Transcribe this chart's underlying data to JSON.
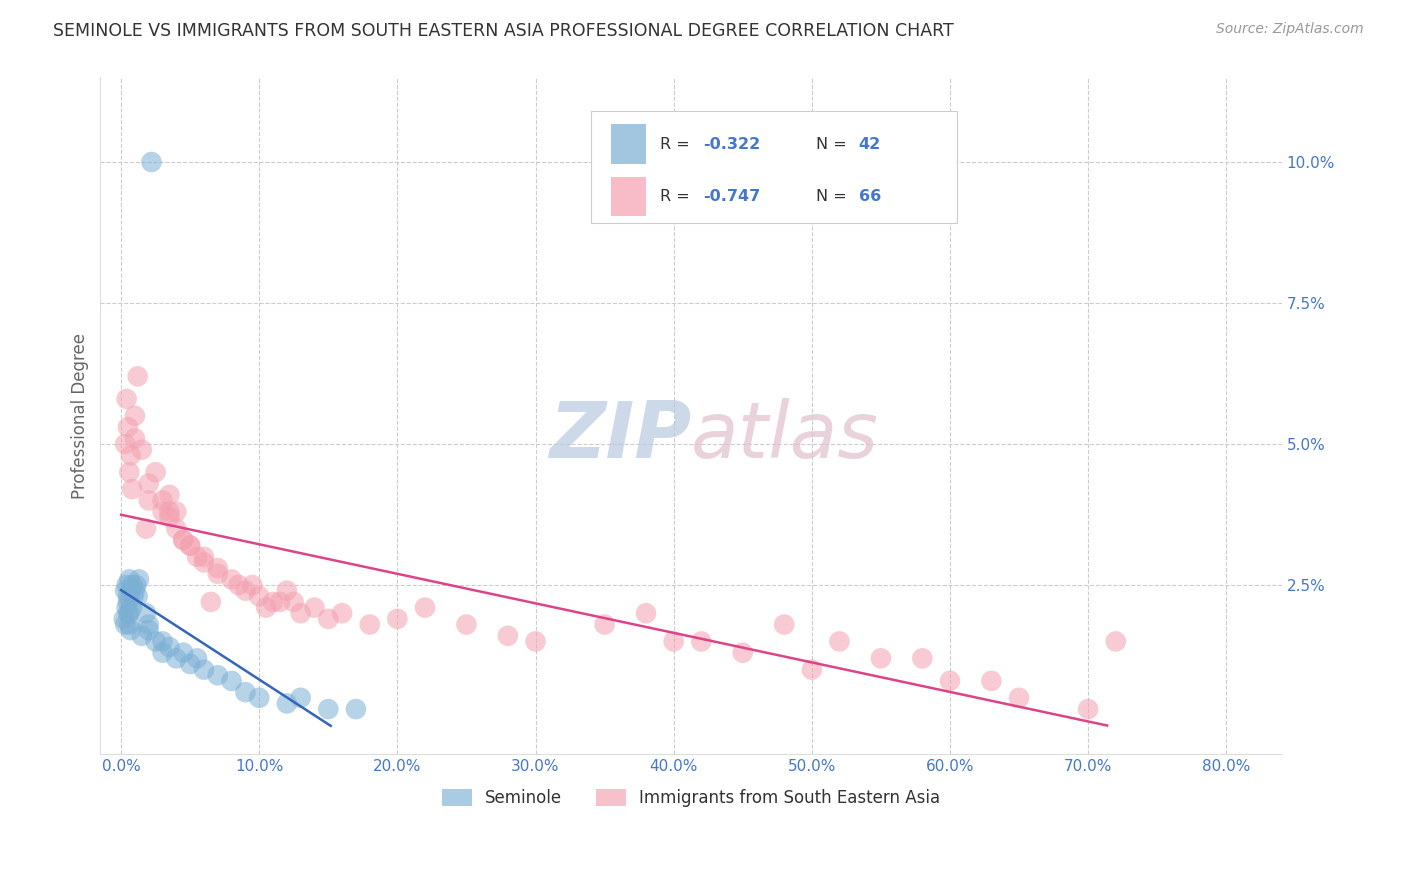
{
  "title": "SEMINOLE VS IMMIGRANTS FROM SOUTH EASTERN ASIA PROFESSIONAL DEGREE CORRELATION CHART",
  "source": "Source: ZipAtlas.com",
  "ylabel": "Professional Degree",
  "xlabel_ticks": [
    0.0,
    10.0,
    20.0,
    30.0,
    40.0,
    50.0,
    60.0,
    70.0,
    80.0
  ],
  "ylabel_ticks": [
    2.5,
    5.0,
    7.5,
    10.0
  ],
  "xlim": [
    -1.5,
    84.0
  ],
  "ylim": [
    -0.5,
    11.5
  ],
  "blue_R": -0.322,
  "blue_N": 42,
  "pink_R": -0.747,
  "pink_N": 66,
  "blue_color": "#7BAFD4",
  "pink_color": "#F4A0B0",
  "blue_line_color": "#3366BB",
  "pink_line_color": "#DD4488",
  "watermark_ZIP_color": "#B8C8E0",
  "watermark_atlas_color": "#E0C0CC",
  "grid_color": "#CCCCCC",
  "title_color": "#333333",
  "axis_value_color": "#4477CC",
  "label_color": "#333333",
  "blue_scatter_x": [
    0.3,
    0.4,
    0.5,
    0.6,
    0.7,
    0.8,
    0.9,
    1.0,
    1.1,
    1.2,
    1.3,
    0.2,
    0.4,
    0.5,
    0.6,
    0.3,
    0.7,
    0.5,
    0.8,
    0.6,
    1.5,
    2.0,
    1.8,
    2.5,
    3.0,
    2.0,
    3.5,
    4.0,
    3.0,
    4.5,
    5.0,
    6.0,
    5.5,
    7.0,
    8.0,
    9.0,
    10.0,
    12.0,
    15.0,
    17.0,
    13.0,
    2.2
  ],
  "blue_scatter_y": [
    2.4,
    2.5,
    2.3,
    2.6,
    2.4,
    2.5,
    2.3,
    2.4,
    2.5,
    2.3,
    2.6,
    1.9,
    2.1,
    2.0,
    1.8,
    1.8,
    1.7,
    2.2,
    2.1,
    2.0,
    1.6,
    1.8,
    2.0,
    1.5,
    1.3,
    1.7,
    1.4,
    1.2,
    1.5,
    1.3,
    1.1,
    1.0,
    1.2,
    0.9,
    0.8,
    0.6,
    0.5,
    0.4,
    0.3,
    0.3,
    0.5,
    10.0
  ],
  "pink_scatter_x": [
    0.3,
    0.5,
    0.7,
    1.0,
    1.2,
    0.4,
    0.6,
    0.8,
    1.5,
    2.0,
    1.0,
    2.5,
    3.0,
    2.0,
    3.5,
    1.8,
    4.0,
    3.0,
    4.5,
    3.5,
    5.0,
    4.0,
    5.5,
    4.5,
    6.0,
    5.0,
    7.0,
    6.0,
    8.0,
    7.0,
    9.0,
    8.5,
    10.0,
    9.5,
    11.0,
    10.5,
    12.0,
    11.5,
    13.0,
    12.5,
    14.0,
    15.0,
    16.0,
    18.0,
    20.0,
    22.0,
    25.0,
    28.0,
    30.0,
    35.0,
    40.0,
    45.0,
    50.0,
    55.0,
    60.0,
    65.0,
    70.0,
    38.0,
    42.0,
    48.0,
    52.0,
    58.0,
    63.0,
    72.0,
    3.5,
    6.5
  ],
  "pink_scatter_y": [
    5.0,
    5.3,
    4.8,
    5.5,
    6.2,
    5.8,
    4.5,
    4.2,
    4.9,
    4.0,
    5.1,
    4.5,
    3.8,
    4.3,
    4.1,
    3.5,
    3.8,
    4.0,
    3.3,
    3.7,
    3.2,
    3.5,
    3.0,
    3.3,
    3.0,
    3.2,
    2.8,
    2.9,
    2.6,
    2.7,
    2.4,
    2.5,
    2.3,
    2.5,
    2.2,
    2.1,
    2.4,
    2.2,
    2.0,
    2.2,
    2.1,
    1.9,
    2.0,
    1.8,
    1.9,
    2.1,
    1.8,
    1.6,
    1.5,
    1.8,
    1.5,
    1.3,
    1.0,
    1.2,
    0.8,
    0.5,
    0.3,
    2.0,
    1.5,
    1.8,
    1.5,
    1.2,
    0.8,
    1.5,
    3.8,
    2.2
  ]
}
